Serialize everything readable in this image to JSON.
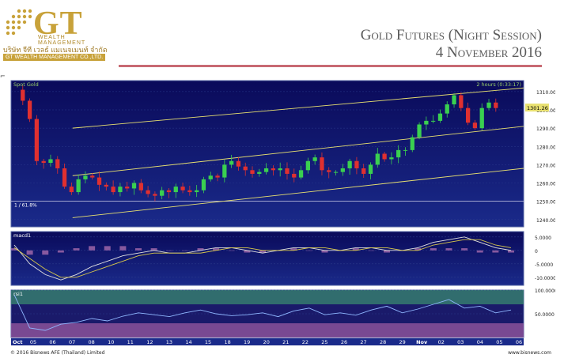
{
  "logo": {
    "letters": "GT",
    "subtitle": "WEALTH MANAGEMENT",
    "thai_name": "บริษัท จีที เวลธ์ แมเนจเมนท์ จำกัด",
    "company": "GT WEALTH MANAGEMENT CO.,LTD.",
    "gold": "#c8a23a"
  },
  "title": {
    "line1": "Gold Futures (Night Session)",
    "line2": "4 November 2016"
  },
  "footer": {
    "copyright": "© 2016 Bisnews AFE (Thailand) Limited",
    "site": "www.bisnews.com"
  },
  "chart_data": [
    {
      "type": "candlestick",
      "title": "Spot Gold",
      "timeframe": "2 hours (0:33:17)",
      "ylim": [
        1236,
        1316
      ],
      "yticks": [
        1240,
        1250,
        1260,
        1270,
        1280,
        1290,
        1300,
        1310
      ],
      "last_price": "1301.26",
      "fib_label": "1 / 61.8%",
      "fib_level": 1250,
      "channel_lines": [
        {
          "from": [
            0.12,
            1290
          ],
          "to": [
            1.0,
            1312
          ]
        },
        {
          "from": [
            0.12,
            1264
          ],
          "to": [
            1.0,
            1291
          ]
        },
        {
          "from": [
            0.12,
            1241
          ],
          "to": [
            1.0,
            1268
          ]
        }
      ],
      "close_path": [
        1311,
        1305,
        1295,
        1272,
        1271,
        1273,
        1268,
        1258,
        1255,
        1262,
        1264,
        1263,
        1259,
        1258,
        1255,
        1258,
        1257,
        1260,
        1256,
        1254,
        1253,
        1256,
        1255,
        1258,
        1256,
        1255,
        1256,
        1262,
        1264,
        1263,
        1270,
        1272,
        1269,
        1267,
        1265,
        1266,
        1268,
        1267,
        1268,
        1265,
        1263,
        1267,
        1272,
        1274,
        1267,
        1266,
        1266,
        1268,
        1272,
        1268,
        1265,
        1270,
        1276,
        1273,
        1274,
        1278,
        1278,
        1285,
        1292,
        1294,
        1294,
        1298,
        1303,
        1308,
        1301,
        1293,
        1290,
        1301,
        1304,
        1301
      ]
    },
    {
      "type": "line",
      "title": "macd1",
      "ylim": [
        -13,
        7
      ],
      "yticks": [
        "5.0000",
        "0",
        "-5.0000",
        "-10.0000"
      ],
      "series": [
        {
          "values": [
            2,
            -5,
            -9,
            -11,
            -9,
            -6,
            -4,
            -2,
            -1,
            0,
            -1,
            -1,
            0,
            1,
            1,
            0,
            -1,
            0,
            1,
            1,
            0,
            0,
            1,
            1,
            0,
            0,
            1,
            3,
            4,
            5,
            3,
            1,
            0
          ]
        },
        {
          "values": [
            1,
            -3,
            -7,
            -10,
            -10,
            -8,
            -6,
            -4,
            -2,
            -1,
            -1,
            -1,
            -1,
            0,
            1,
            1,
            0,
            0,
            0,
            1,
            1,
            0,
            0,
            1,
            1,
            0,
            0,
            2,
            3,
            4,
            4,
            2,
            1
          ]
        }
      ],
      "colors": [
        "#e0e0e0",
        "#d8c84a"
      ]
    },
    {
      "type": "line",
      "title": "rsi1",
      "ylim": [
        0,
        100
      ],
      "yticks": [
        "100.0000",
        "50.0000"
      ],
      "series": [
        {
          "values": [
            90,
            20,
            15,
            28,
            32,
            40,
            35,
            45,
            52,
            48,
            44,
            52,
            58,
            50,
            46,
            48,
            52,
            44,
            56,
            62,
            48,
            52,
            47,
            58,
            66,
            52,
            60,
            70,
            80,
            62,
            66,
            52,
            58
          ]
        }
      ],
      "colors": [
        "#8fb7ff"
      ]
    }
  ],
  "xaxis": {
    "month_start": "Oct",
    "labels": [
      "05",
      "06",
      "07",
      "08",
      "10",
      "11",
      "12",
      "13",
      "14",
      "15",
      "18",
      "19",
      "20",
      "21",
      "22",
      "25",
      "26",
      "27",
      "28",
      "29",
      "Nov",
      "02",
      "03",
      "04",
      "05",
      "06"
    ]
  }
}
